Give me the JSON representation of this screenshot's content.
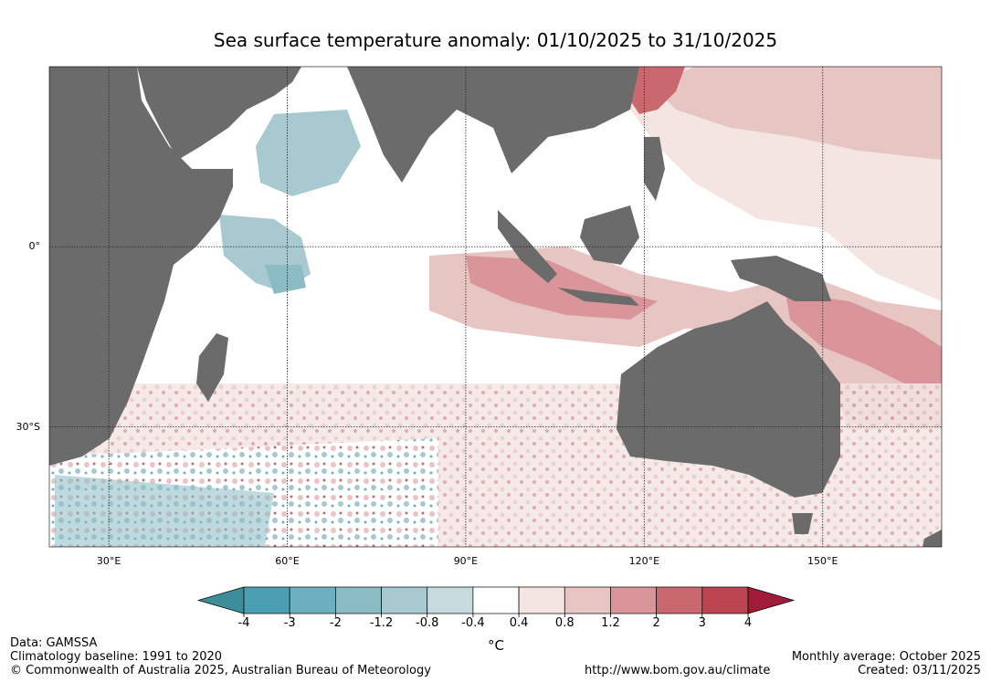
{
  "title": "Sea surface temperature anomaly: 01/10/2025 to 31/10/2025",
  "map": {
    "lon_range": [
      20,
      170
    ],
    "lat_range": [
      -50,
      30
    ],
    "lon_ticks": [
      {
        "value": 30,
        "label": "30°E"
      },
      {
        "value": 60,
        "label": "60°E"
      },
      {
        "value": 90,
        "label": "90°E"
      },
      {
        "value": 120,
        "label": "120°E"
      },
      {
        "value": 150,
        "label": "150°E"
      }
    ],
    "lat_ticks": [
      {
        "value": 0,
        "label": "0°"
      },
      {
        "value": -30,
        "label": "30°S"
      }
    ],
    "land_color": "#6b6b6b",
    "gridline_color": "#222222"
  },
  "colorbar": {
    "unit": "°C",
    "ticks": [
      "-4",
      "-3",
      "-2",
      "-1.2",
      "-0.8",
      "-0.4",
      "0.4",
      "0.8",
      "1.2",
      "2",
      "3",
      "4"
    ],
    "colors": [
      "#3d8e98",
      "#4aa0b2",
      "#6eb0bf",
      "#8bbcc4",
      "#a7c9cf",
      "#c6dbde",
      "#ffffff",
      "#f4e5e3",
      "#e6c5c3",
      "#d9959a",
      "#c9696f",
      "#ba4550",
      "#a01c39"
    ]
  },
  "footer": {
    "data_source": "Data: GAMSSA",
    "baseline": "Climatology baseline: 1991 to 2020",
    "copyright": "© Commonwealth of Australia 2025, Australian Bureau of Meteorology",
    "url": "http://www.bom.gov.au/climate",
    "period": "Monthly average: October 2025",
    "created": "Created: 03/11/2025"
  }
}
